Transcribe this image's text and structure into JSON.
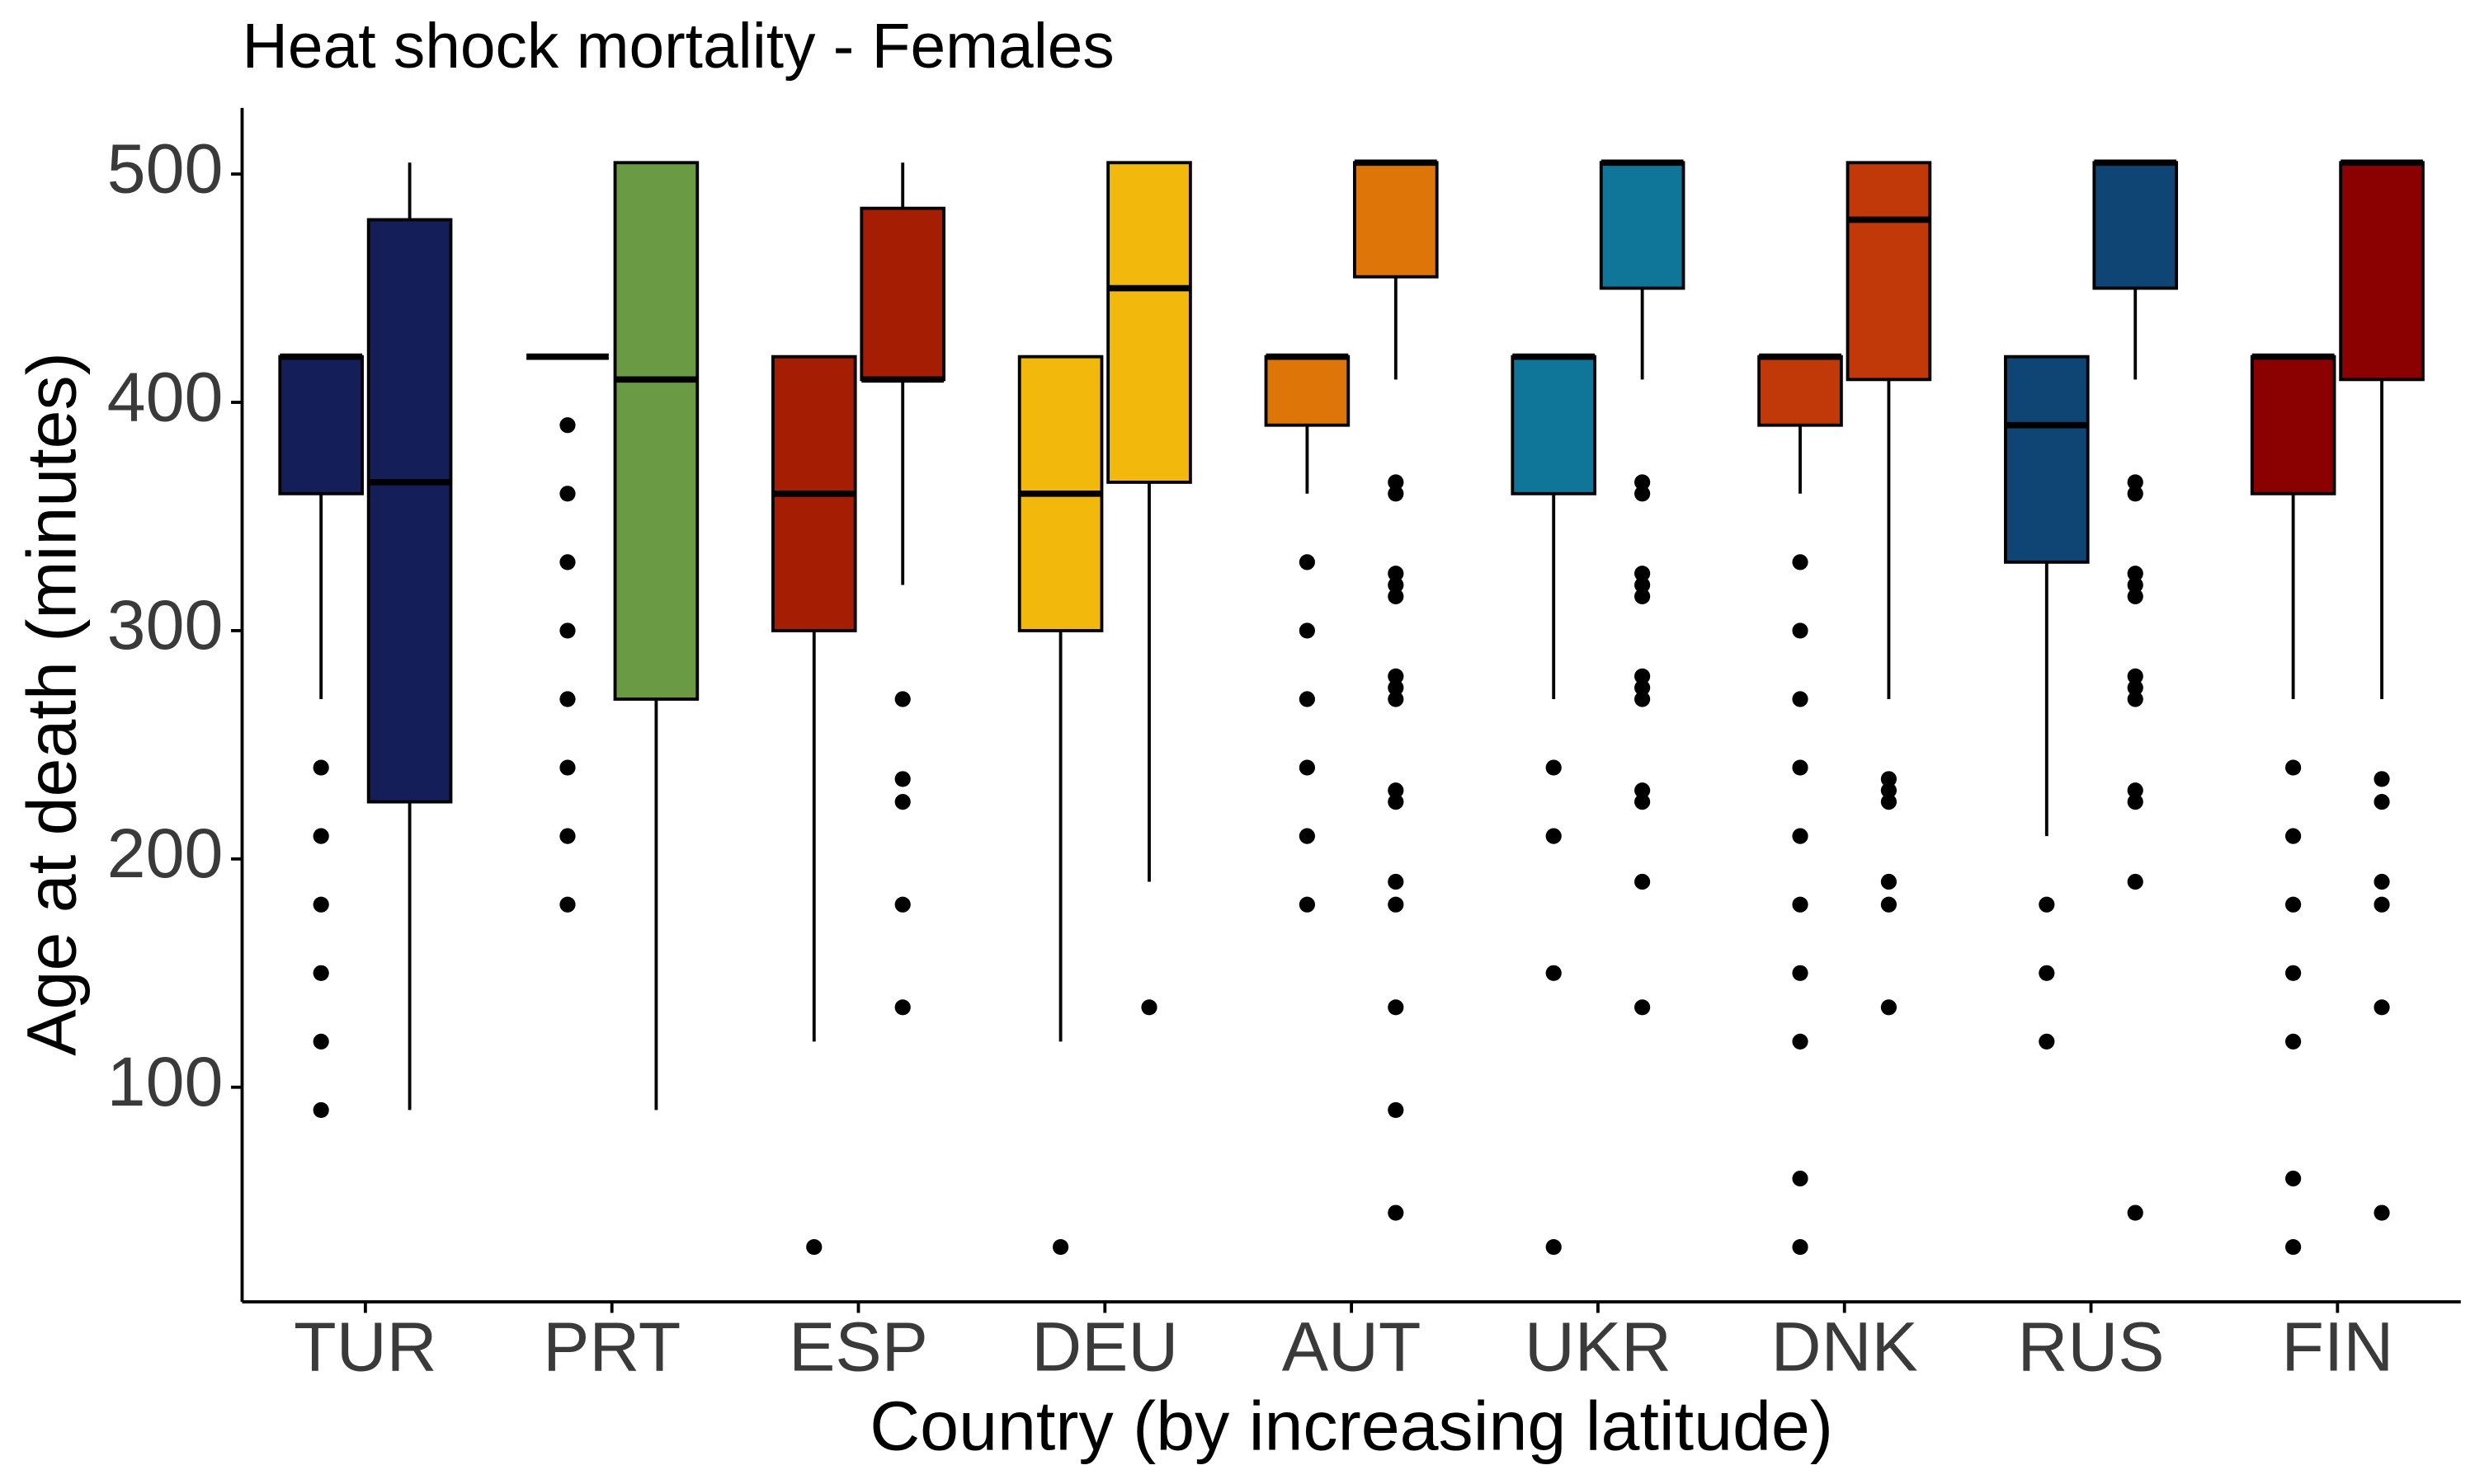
{
  "chart_data": {
    "type": "boxplot",
    "title": "Heat shock mortality - Females",
    "x_label": "Country (by increasing latitude)",
    "y_label": "Age at death (minutes)",
    "categories": [
      "TUR",
      "PRT",
      "ESP",
      "DEU",
      "AUT",
      "UKR",
      "DNK",
      "RUS",
      "FIN"
    ],
    "ylim": [
      6,
      529
    ],
    "yticks": [
      100,
      200,
      300,
      400,
      500
    ],
    "groups": [
      {
        "color": "#141f59",
        "boxes": [
          {
            "min": 270,
            "q1": 360,
            "median": 420,
            "q3": 420,
            "max": 420,
            "outliers": [
              240,
              210,
              180,
              150,
              120,
              90
            ]
          },
          {
            "min": 90,
            "q1": 225,
            "median": 365,
            "q3": 480,
            "max": 505,
            "outliers": []
          }
        ]
      },
      {
        "color": "#6a9a44",
        "boxes": [
          {
            "min": 420,
            "q1": 420,
            "median": 420,
            "q3": 420,
            "max": 420,
            "outliers": [
              390,
              360,
              330,
              300,
              270,
              240,
              210,
              180
            ]
          },
          {
            "min": 90,
            "q1": 270,
            "median": 410,
            "q3": 505,
            "max": 505,
            "outliers": []
          }
        ]
      },
      {
        "color": "#a51e04",
        "boxes": [
          {
            "min": 120,
            "q1": 300,
            "median": 360,
            "q3": 420,
            "max": 420,
            "outliers": [
              30
            ]
          },
          {
            "min": 320,
            "q1": 410,
            "median": 410,
            "q3": 485,
            "max": 505,
            "outliers": [
              270,
              235,
              225,
              180,
              135
            ]
          }
        ]
      },
      {
        "color": "#f2b90c",
        "boxes": [
          {
            "min": 120,
            "q1": 300,
            "median": 360,
            "q3": 420,
            "max": 420,
            "outliers": [
              30
            ]
          },
          {
            "min": 190,
            "q1": 365,
            "median": 450,
            "q3": 505,
            "max": 505,
            "outliers": [
              135
            ]
          }
        ]
      },
      {
        "color": "#de7509",
        "boxes": [
          {
            "min": 360,
            "q1": 390,
            "median": 420,
            "q3": 420,
            "max": 420,
            "outliers": [
              330,
              300,
              270,
              240,
              210,
              180
            ]
          },
          {
            "min": 410,
            "q1": 455,
            "median": 505,
            "q3": 505,
            "max": 505,
            "outliers": [
              365,
              360,
              325,
              320,
              315,
              280,
              275,
              270,
              230,
              225,
              190,
              180,
              135,
              90,
              45
            ]
          }
        ]
      },
      {
        "color": "#0f769a",
        "boxes": [
          {
            "min": 270,
            "q1": 360,
            "median": 420,
            "q3": 420,
            "max": 420,
            "outliers": [
              240,
              210,
              150,
              30
            ]
          },
          {
            "min": 410,
            "q1": 450,
            "median": 505,
            "q3": 505,
            "max": 505,
            "outliers": [
              365,
              360,
              325,
              320,
              315,
              280,
              275,
              270,
              230,
              225,
              190,
              135
            ]
          }
        ]
      },
      {
        "color": "#c13908",
        "boxes": [
          {
            "min": 360,
            "q1": 390,
            "median": 420,
            "q3": 420,
            "max": 420,
            "outliers": [
              330,
              300,
              270,
              240,
              210,
              180,
              150,
              120,
              60,
              30
            ]
          },
          {
            "min": 270,
            "q1": 410,
            "median": 480,
            "q3": 505,
            "max": 505,
            "outliers": [
              235,
              230,
              225,
              190,
              180,
              135
            ]
          }
        ]
      },
      {
        "color": "#0e4574",
        "boxes": [
          {
            "min": 210,
            "q1": 330,
            "median": 390,
            "q3": 420,
            "max": 420,
            "outliers": [
              180,
              150,
              120
            ]
          },
          {
            "min": 410,
            "q1": 450,
            "median": 505,
            "q3": 505,
            "max": 505,
            "outliers": [
              365,
              360,
              325,
              320,
              315,
              280,
              275,
              270,
              230,
              225,
              190,
              45
            ]
          }
        ]
      },
      {
        "color": "#8b0000",
        "boxes": [
          {
            "min": 270,
            "q1": 360,
            "median": 420,
            "q3": 420,
            "max": 420,
            "outliers": [
              240,
              210,
              180,
              150,
              120,
              60,
              30
            ]
          },
          {
            "min": 270,
            "q1": 410,
            "median": 505,
            "q3": 505,
            "max": 505,
            "outliers": [
              235,
              225,
              190,
              180,
              135,
              45
            ]
          }
        ]
      }
    ]
  }
}
